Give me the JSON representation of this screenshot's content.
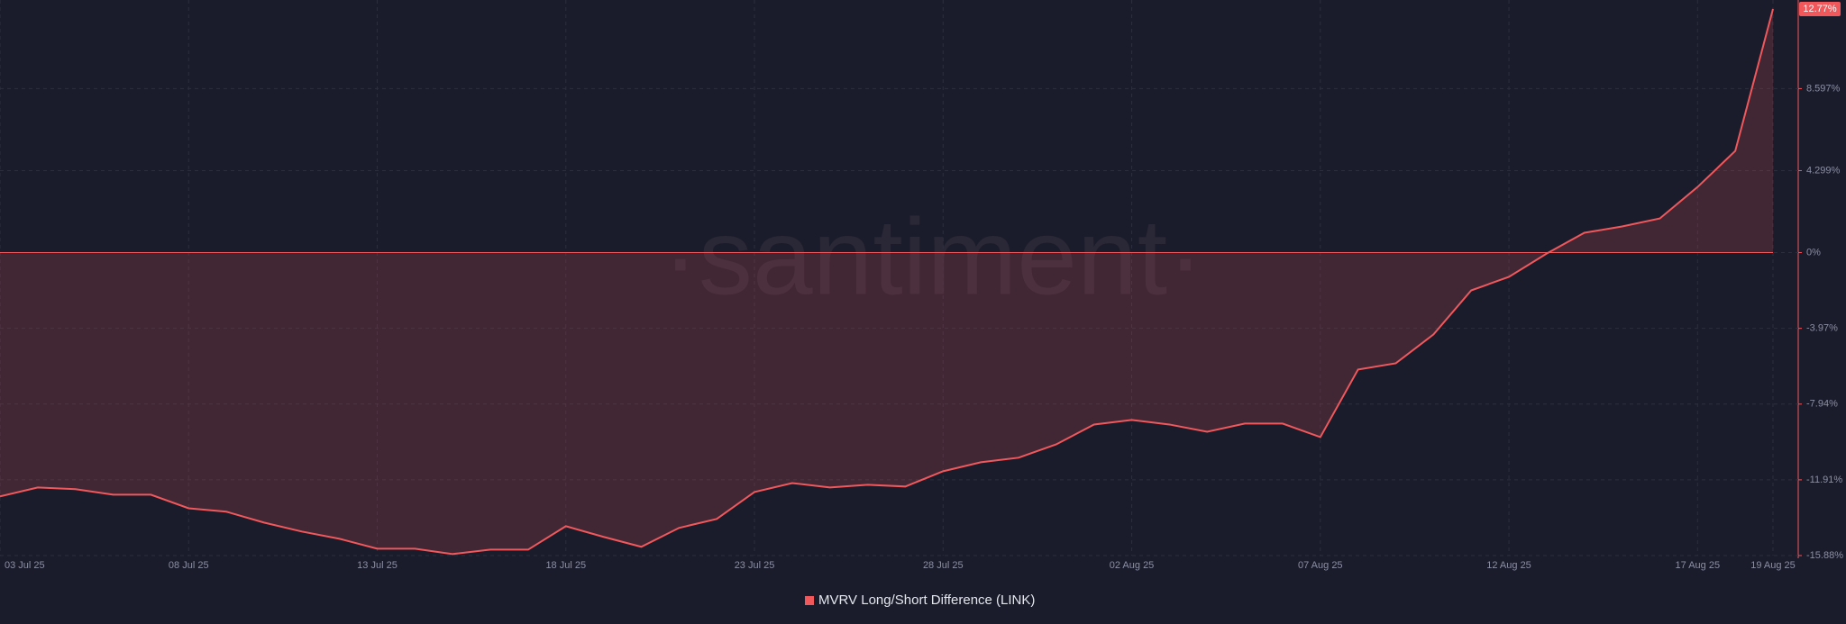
{
  "chart_data": {
    "type": "area-line",
    "watermark": "·santiment·",
    "categories": [
      "03 Jul 25",
      null,
      null,
      null,
      null,
      "08 Jul 25",
      null,
      null,
      null,
      null,
      "13 Jul 25",
      null,
      null,
      null,
      null,
      "18 Jul 25",
      null,
      null,
      null,
      null,
      "23 Jul 25",
      null,
      null,
      null,
      null,
      "28 Jul 25",
      null,
      null,
      null,
      null,
      "02 Aug 25",
      null,
      null,
      null,
      null,
      "07 Aug 25",
      null,
      null,
      null,
      null,
      "12 Aug 25",
      null,
      null,
      null,
      null,
      "17 Aug 25",
      null,
      "19 Aug 25"
    ],
    "series": [
      {
        "name": "MVRV Long/Short Difference (LINK)",
        "color": "#f0585c",
        "values": [
          -12.78,
          -12.31,
          -12.4,
          -12.69,
          -12.69,
          -13.4,
          -13.58,
          -14.15,
          -14.62,
          -15.0,
          -15.52,
          -15.52,
          -15.8,
          -15.57,
          -15.57,
          -14.34,
          -14.9,
          -15.42,
          -14.43,
          -13.96,
          -12.55,
          -12.08,
          -12.31,
          -12.17,
          -12.26,
          -11.46,
          -10.99,
          -10.75,
          -10.05,
          -9.01,
          -8.77,
          -9.01,
          -9.39,
          -8.96,
          -8.96,
          -9.67,
          -6.13,
          -5.8,
          -4.29,
          -1.98,
          -1.27,
          -0.05,
          1.04,
          1.37,
          1.79,
          3.44,
          5.33,
          12.77
        ],
        "value_labels": [
          null,
          null,
          null,
          null,
          null,
          null,
          null,
          null,
          null,
          null,
          null,
          null,
          null,
          null,
          null,
          null,
          null,
          null,
          null,
          null,
          null,
          null,
          null,
          null,
          null,
          null,
          null,
          null,
          null,
          null,
          null,
          null,
          null,
          null,
          null,
          null,
          null,
          null,
          null,
          null,
          null,
          null,
          null,
          null,
          null,
          null,
          null,
          "12.77%"
        ]
      }
    ],
    "ylim": [
      -15.88,
      12.77
    ],
    "yticks": [
      {
        "value": -15.88,
        "label": "-15.88%"
      },
      {
        "value": -11.91,
        "label": "-11.91%"
      },
      {
        "value": -7.94,
        "label": "-7.94%"
      },
      {
        "value": -3.97,
        "label": "-3.97%"
      },
      {
        "value": 0,
        "label": "0%"
      },
      {
        "value": 4.299,
        "label": "4.299%"
      },
      {
        "value": 8.597,
        "label": "8.597%"
      }
    ],
    "grid": true
  }
}
